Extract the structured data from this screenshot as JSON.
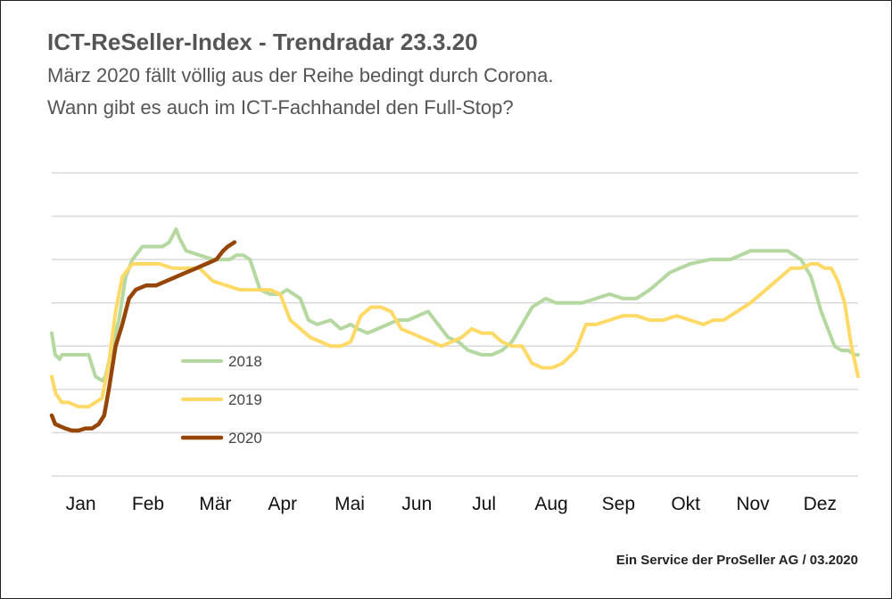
{
  "header": {
    "title": "ICT-ReSeller-Index - Trendradar 23.3.20",
    "subtitle_line1": "März 2020 fällt völlig aus der Reihe bedingt durch Corona.",
    "subtitle_line2": "Wann gibt es auch im ICT-Fachhandel den Full-Stop?"
  },
  "footer": {
    "credit": "Ein Service der ProSeller AG / 03.2020"
  },
  "chart_data": {
    "type": "line",
    "title": "ICT-ReSeller-Index - Trendradar 23.3.20",
    "xlabel": "",
    "ylabel": "",
    "grid": true,
    "y_axis_labels_shown": false,
    "x_unit": "month index (0 = start of Jan, 12 = end of Dec)",
    "y_unit": "index value (relative, 0-7 gridlines)",
    "ylim": [
      0,
      7
    ],
    "xlim": [
      0,
      12
    ],
    "categories": [
      "Jan",
      "Feb",
      "Mär",
      "Apr",
      "Mai",
      "Jun",
      "Jul",
      "Aug",
      "Sep",
      "Okt",
      "Nov",
      "Dez"
    ],
    "legend_position": "left-inside",
    "series": [
      {
        "name": "2018",
        "color": "#b4d8a0",
        "x": [
          0.0,
          0.05,
          0.12,
          0.15,
          0.25,
          0.4,
          0.55,
          0.65,
          0.75,
          0.8,
          0.9,
          1.0,
          1.1,
          1.2,
          1.35,
          1.5,
          1.65,
          1.75,
          1.85,
          1.9,
          2.0,
          2.2,
          2.4,
          2.55,
          2.65,
          2.75,
          2.85,
          2.95,
          3.1,
          3.25,
          3.4,
          3.5,
          3.7,
          3.82,
          3.95,
          4.15,
          4.3,
          4.45,
          4.55,
          4.7,
          4.85,
          5.0,
          5.15,
          5.3,
          5.45,
          5.6,
          5.75,
          5.9,
          6.05,
          6.2,
          6.4,
          6.55,
          6.7,
          6.85,
          7.0,
          7.15,
          7.35,
          7.5,
          7.7,
          7.9,
          8.1,
          8.3,
          8.5,
          8.7,
          8.9,
          9.2,
          9.5,
          9.8,
          10.1,
          10.4,
          10.6,
          10.8,
          10.95,
          11.15,
          11.3,
          11.45,
          11.55,
          11.65,
          11.75,
          11.85,
          11.95,
          12.0
        ],
        "values": [
          3.3,
          2.8,
          2.7,
          2.8,
          2.8,
          2.8,
          2.8,
          2.3,
          2.2,
          2.3,
          3.0,
          3.6,
          4.6,
          5.0,
          5.3,
          5.3,
          5.3,
          5.4,
          5.7,
          5.5,
          5.2,
          5.1,
          5.0,
          5.0,
          5.0,
          5.1,
          5.1,
          5.0,
          4.3,
          4.2,
          4.2,
          4.3,
          4.1,
          3.6,
          3.5,
          3.6,
          3.4,
          3.5,
          3.4,
          3.3,
          3.4,
          3.5,
          3.6,
          3.6,
          3.7,
          3.8,
          3.5,
          3.2,
          3.1,
          2.9,
          2.8,
          2.8,
          2.9,
          3.1,
          3.5,
          3.9,
          4.1,
          4.0,
          4.0,
          4.0,
          4.1,
          4.2,
          4.1,
          4.1,
          4.3,
          4.7,
          4.9,
          5.0,
          5.0,
          5.2,
          5.2,
          5.2,
          5.2,
          5.0,
          4.6,
          3.8,
          3.4,
          3.0,
          2.9,
          2.9,
          2.8,
          2.8
        ]
      },
      {
        "name": "2019",
        "color": "#ffd966",
        "x": [
          0.0,
          0.06,
          0.15,
          0.25,
          0.4,
          0.55,
          0.65,
          0.75,
          0.85,
          0.95,
          1.05,
          1.2,
          1.4,
          1.6,
          1.8,
          2.0,
          2.2,
          2.4,
          2.6,
          2.8,
          2.95,
          3.1,
          3.25,
          3.4,
          3.55,
          3.7,
          3.85,
          4.0,
          4.15,
          4.3,
          4.45,
          4.6,
          4.75,
          4.9,
          5.05,
          5.2,
          5.35,
          5.5,
          5.65,
          5.8,
          5.95,
          6.1,
          6.25,
          6.4,
          6.55,
          6.7,
          6.85,
          7.0,
          7.15,
          7.3,
          7.45,
          7.6,
          7.8,
          7.95,
          8.1,
          8.3,
          8.5,
          8.7,
          8.9,
          9.1,
          9.3,
          9.5,
          9.7,
          9.85,
          10.0,
          10.2,
          10.4,
          10.55,
          10.7,
          10.85,
          11.0,
          11.15,
          11.3,
          11.4,
          11.5,
          11.6,
          11.7,
          11.8,
          11.9,
          12.0
        ],
        "values": [
          2.3,
          1.9,
          1.7,
          1.7,
          1.6,
          1.6,
          1.7,
          1.8,
          2.6,
          3.8,
          4.6,
          4.9,
          4.9,
          4.9,
          4.8,
          4.8,
          4.8,
          4.5,
          4.4,
          4.3,
          4.3,
          4.3,
          4.3,
          4.2,
          3.6,
          3.4,
          3.2,
          3.1,
          3.0,
          3.0,
          3.1,
          3.7,
          3.9,
          3.9,
          3.8,
          3.4,
          3.3,
          3.2,
          3.1,
          3.0,
          3.1,
          3.2,
          3.4,
          3.3,
          3.3,
          3.1,
          3.0,
          3.0,
          2.6,
          2.5,
          2.5,
          2.6,
          2.9,
          3.5,
          3.5,
          3.6,
          3.7,
          3.7,
          3.6,
          3.6,
          3.7,
          3.6,
          3.5,
          3.6,
          3.6,
          3.8,
          4.0,
          4.2,
          4.4,
          4.6,
          4.8,
          4.8,
          4.9,
          4.9,
          4.8,
          4.8,
          4.5,
          4.0,
          3.0,
          2.3
        ]
      },
      {
        "name": "2020",
        "color": "#974506",
        "x": [
          0.0,
          0.05,
          0.12,
          0.2,
          0.3,
          0.4,
          0.5,
          0.6,
          0.7,
          0.78,
          0.85,
          0.95,
          1.05,
          1.15,
          1.25,
          1.4,
          1.55,
          1.7,
          1.85,
          2.0,
          2.15,
          2.3,
          2.45,
          2.55,
          2.62,
          2.72
        ],
        "values": [
          1.4,
          1.2,
          1.15,
          1.1,
          1.05,
          1.05,
          1.1,
          1.1,
          1.2,
          1.4,
          2.0,
          3.0,
          3.5,
          4.1,
          4.3,
          4.4,
          4.4,
          4.5,
          4.6,
          4.7,
          4.8,
          4.9,
          5.0,
          5.2,
          5.3,
          5.4
        ]
      }
    ]
  }
}
